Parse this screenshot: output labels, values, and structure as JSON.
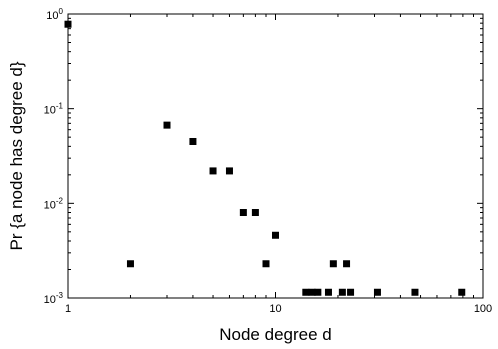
{
  "chart_data": {
    "type": "scatter",
    "title": "",
    "xlabel": "Node degree d",
    "ylabel": "Pr {a node has degree d}",
    "x_scale": "log",
    "y_scale": "log",
    "xlim": [
      1,
      100
    ],
    "ylim": [
      0.001,
      1
    ],
    "x_ticks": [
      {
        "value": 1,
        "label": "1"
      },
      {
        "value": 10,
        "label": "10"
      },
      {
        "value": 100,
        "label": "100"
      }
    ],
    "y_ticks": [
      {
        "value": 0.001,
        "base": "10",
        "exp": "-3"
      },
      {
        "value": 0.01,
        "base": "10",
        "exp": "-2"
      },
      {
        "value": 0.1,
        "base": "10",
        "exp": "-1"
      },
      {
        "value": 1,
        "base": "10",
        "exp": "0"
      }
    ],
    "grid": false,
    "marker": "square",
    "marker_color": "#000000",
    "points": [
      {
        "x": 1,
        "y": 0.78
      },
      {
        "x": 2,
        "y": 0.0023
      },
      {
        "x": 3,
        "y": 0.067
      },
      {
        "x": 4,
        "y": 0.045
      },
      {
        "x": 5,
        "y": 0.022
      },
      {
        "x": 6,
        "y": 0.022
      },
      {
        "x": 7,
        "y": 0.008
      },
      {
        "x": 8,
        "y": 0.008
      },
      {
        "x": 9,
        "y": 0.0023
      },
      {
        "x": 10,
        "y": 0.0046
      },
      {
        "x": 14,
        "y": 0.00115
      },
      {
        "x": 15,
        "y": 0.00115
      },
      {
        "x": 16,
        "y": 0.00115
      },
      {
        "x": 18,
        "y": 0.00115
      },
      {
        "x": 19,
        "y": 0.0023
      },
      {
        "x": 21,
        "y": 0.00115
      },
      {
        "x": 22,
        "y": 0.0023
      },
      {
        "x": 23,
        "y": 0.00115
      },
      {
        "x": 31,
        "y": 0.00115
      },
      {
        "x": 47,
        "y": 0.00115
      },
      {
        "x": 79,
        "y": 0.00115
      }
    ]
  }
}
